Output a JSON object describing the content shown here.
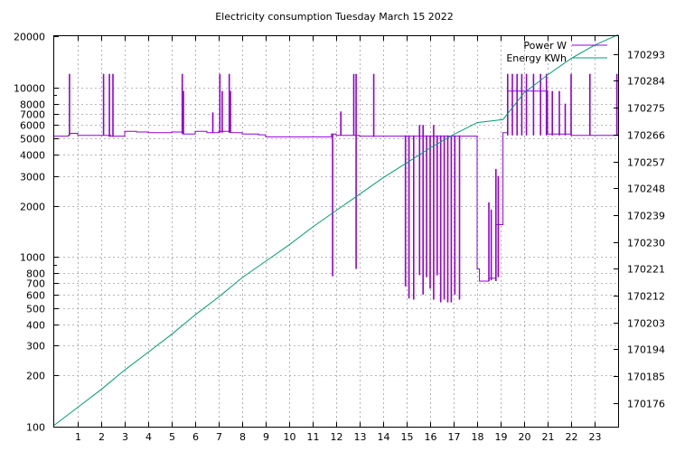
{
  "chart_data": {
    "type": "line",
    "title": "Electricity consumption Tuesday March 15 2022",
    "xlabel": "",
    "ylabel": "",
    "y2label": "",
    "grid": true,
    "legend_position": "top-right",
    "x": {
      "range": [
        0,
        24
      ],
      "ticks": [
        "1",
        "2",
        "3",
        "4",
        "5",
        "6",
        "7",
        "8",
        "9",
        "10",
        "11",
        "12",
        "13",
        "14",
        "15",
        "16",
        "17",
        "18",
        "19",
        "20",
        "21",
        "22",
        "23"
      ]
    },
    "y_left": {
      "scale": "log",
      "range": [
        100,
        20000
      ],
      "ticks": [
        "100",
        "200",
        "300",
        "400",
        "500",
        "600",
        "700",
        "800",
        "1000",
        "2000",
        "3000",
        "4000",
        "5000",
        "6000",
        "7000",
        "8000",
        "10000",
        "20000"
      ]
    },
    "y_right": {
      "range": [
        170168,
        170299
      ],
      "ticks": [
        "170176",
        "170185",
        "170194",
        "170203",
        "170212",
        "170221",
        "170230",
        "170239",
        "170248",
        "170257",
        "170266",
        "170275",
        "170284",
        "170293"
      ]
    },
    "series": [
      {
        "name": "Power W",
        "axis": "left",
        "color": "#9400d3",
        "baseline": [
          [
            0,
            5150
          ],
          [
            0.6,
            5200
          ],
          [
            0.65,
            5350
          ],
          [
            1,
            5200
          ],
          [
            2,
            5200
          ],
          [
            2.4,
            5150
          ],
          [
            3,
            5500
          ],
          [
            3.5,
            5450
          ],
          [
            4,
            5400
          ],
          [
            5,
            5450
          ],
          [
            5.5,
            5300
          ],
          [
            6,
            5500
          ],
          [
            6.5,
            5400
          ],
          [
            7,
            5500
          ],
          [
            7.5,
            5400
          ],
          [
            8,
            5300
          ],
          [
            8.7,
            5250
          ],
          [
            9,
            5100
          ],
          [
            10,
            5100
          ],
          [
            11,
            5100
          ],
          [
            11.8,
            5300
          ],
          [
            12,
            5200
          ],
          [
            13,
            5150
          ],
          [
            14,
            5150
          ],
          [
            15,
            5150
          ],
          [
            16,
            5150
          ],
          [
            17,
            5150
          ],
          [
            17.9,
            5150
          ],
          [
            18,
            850
          ],
          [
            18.1,
            720
          ],
          [
            18.5,
            750
          ],
          [
            18.8,
            1550
          ],
          [
            19.1,
            5400
          ],
          [
            19.3,
            9500
          ],
          [
            20,
            9500
          ],
          [
            21,
            5300
          ],
          [
            22,
            5200
          ],
          [
            23,
            5200
          ],
          [
            24,
            5150
          ]
        ],
        "spikes": [
          {
            "x": 0.65,
            "min": 5200,
            "max": 12000
          },
          {
            "x": 2.1,
            "min": 5200,
            "max": 12000
          },
          {
            "x": 2.35,
            "min": 5100,
            "max": 12000
          },
          {
            "x": 2.5,
            "min": 5100,
            "max": 12000
          },
          {
            "x": 5.45,
            "min": 5300,
            "max": 12000
          },
          {
            "x": 5.5,
            "min": 5300,
            "max": 9500
          },
          {
            "x": 6.75,
            "min": 5400,
            "max": 7100
          },
          {
            "x": 7.05,
            "min": 5400,
            "max": 12000
          },
          {
            "x": 7.15,
            "min": 5400,
            "max": 9500
          },
          {
            "x": 7.45,
            "min": 5400,
            "max": 12000
          },
          {
            "x": 7.5,
            "min": 5400,
            "max": 9500
          },
          {
            "x": 11.85,
            "min": 770,
            "max": 5300
          },
          {
            "x": 12.2,
            "min": 5200,
            "max": 7200
          },
          {
            "x": 12.75,
            "min": 5200,
            "max": 12000
          },
          {
            "x": 12.85,
            "min": 850,
            "max": 12000
          },
          {
            "x": 13.6,
            "min": 5100,
            "max": 12000
          },
          {
            "x": 14.95,
            "min": 670,
            "max": 5200
          },
          {
            "x": 15.1,
            "min": 570,
            "max": 5200
          },
          {
            "x": 15.3,
            "min": 560,
            "max": 5200
          },
          {
            "x": 15.55,
            "min": 780,
            "max": 6000
          },
          {
            "x": 15.7,
            "min": 600,
            "max": 6000
          },
          {
            "x": 15.85,
            "min": 760,
            "max": 5200
          },
          {
            "x": 16,
            "min": 650,
            "max": 5200
          },
          {
            "x": 16.15,
            "min": 560,
            "max": 6000
          },
          {
            "x": 16.3,
            "min": 780,
            "max": 5200
          },
          {
            "x": 16.45,
            "min": 540,
            "max": 5200
          },
          {
            "x": 16.6,
            "min": 560,
            "max": 5200
          },
          {
            "x": 16.75,
            "min": 540,
            "max": 5200
          },
          {
            "x": 16.9,
            "min": 540,
            "max": 5200
          },
          {
            "x": 17.05,
            "min": 600,
            "max": 5200
          },
          {
            "x": 17.25,
            "min": 560,
            "max": 5200
          },
          {
            "x": 18.5,
            "min": 720,
            "max": 2100
          },
          {
            "x": 18.6,
            "min": 730,
            "max": 1900
          },
          {
            "x": 18.8,
            "min": 720,
            "max": 3300
          },
          {
            "x": 18.9,
            "min": 760,
            "max": 3000
          },
          {
            "x": 19.3,
            "min": 5200,
            "max": 12000
          },
          {
            "x": 19.5,
            "min": 5200,
            "max": 12000
          },
          {
            "x": 19.7,
            "min": 5200,
            "max": 12000
          },
          {
            "x": 19.9,
            "min": 5200,
            "max": 12000
          },
          {
            "x": 20.1,
            "min": 5200,
            "max": 12000
          },
          {
            "x": 20.4,
            "min": 5200,
            "max": 12000
          },
          {
            "x": 20.7,
            "min": 5200,
            "max": 12000
          },
          {
            "x": 20.95,
            "min": 5200,
            "max": 12000
          },
          {
            "x": 21.2,
            "min": 5200,
            "max": 9500
          },
          {
            "x": 21.5,
            "min": 5200,
            "max": 9500
          },
          {
            "x": 21.75,
            "min": 5200,
            "max": 8000
          },
          {
            "x": 22,
            "min": 5200,
            "max": 12000
          },
          {
            "x": 22.8,
            "min": 5200,
            "max": 12000
          },
          {
            "x": 23.95,
            "min": 5200,
            "max": 12000
          }
        ]
      },
      {
        "name": "Energy KWh",
        "axis": "right",
        "color": "#009e73",
        "points": [
          [
            0,
            170168.5
          ],
          [
            1,
            170174.5
          ],
          [
            2,
            170180.5
          ],
          [
            3,
            170187
          ],
          [
            4,
            170193
          ],
          [
            5,
            170199
          ],
          [
            6,
            170205.5
          ],
          [
            7,
            170211.5
          ],
          [
            8,
            170218
          ],
          [
            9,
            170223.5
          ],
          [
            10,
            170229
          ],
          [
            11,
            170235
          ],
          [
            12,
            170240.5
          ],
          [
            13,
            170246
          ],
          [
            14,
            170251.5
          ],
          [
            15,
            170256.5
          ],
          [
            16,
            170261.5
          ],
          [
            17,
            170266
          ],
          [
            18,
            170270
          ],
          [
            19.1,
            170271
          ],
          [
            19.4,
            170274
          ],
          [
            20,
            170280
          ],
          [
            21,
            170286
          ],
          [
            22,
            170291.5
          ],
          [
            23,
            170296
          ],
          [
            24,
            170299.5
          ]
        ]
      }
    ]
  }
}
